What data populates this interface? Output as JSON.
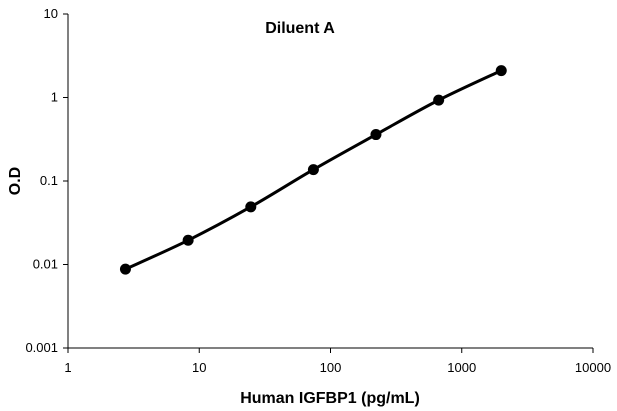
{
  "chart_data": {
    "type": "line",
    "title": "Diluent A",
    "xlabel": "Human IGFBP1 (pg/mL)",
    "ylabel": "O.D",
    "x_scale": "log",
    "y_scale": "log",
    "xlim": [
      1,
      10000
    ],
    "ylim": [
      0.001,
      10
    ],
    "x_ticks": [
      "1",
      "10",
      "100",
      "1000",
      "10000"
    ],
    "y_ticks": [
      "0.001",
      "0.01",
      "0.1",
      "1",
      "10"
    ],
    "grid": false,
    "legend": false,
    "series": [
      {
        "x": [
          2.74,
          8.23,
          24.7,
          74.1,
          222,
          667,
          2000
        ],
        "y": [
          0.0088,
          0.0195,
          0.049,
          0.137,
          0.36,
          0.93,
          2.1
        ]
      }
    ]
  }
}
